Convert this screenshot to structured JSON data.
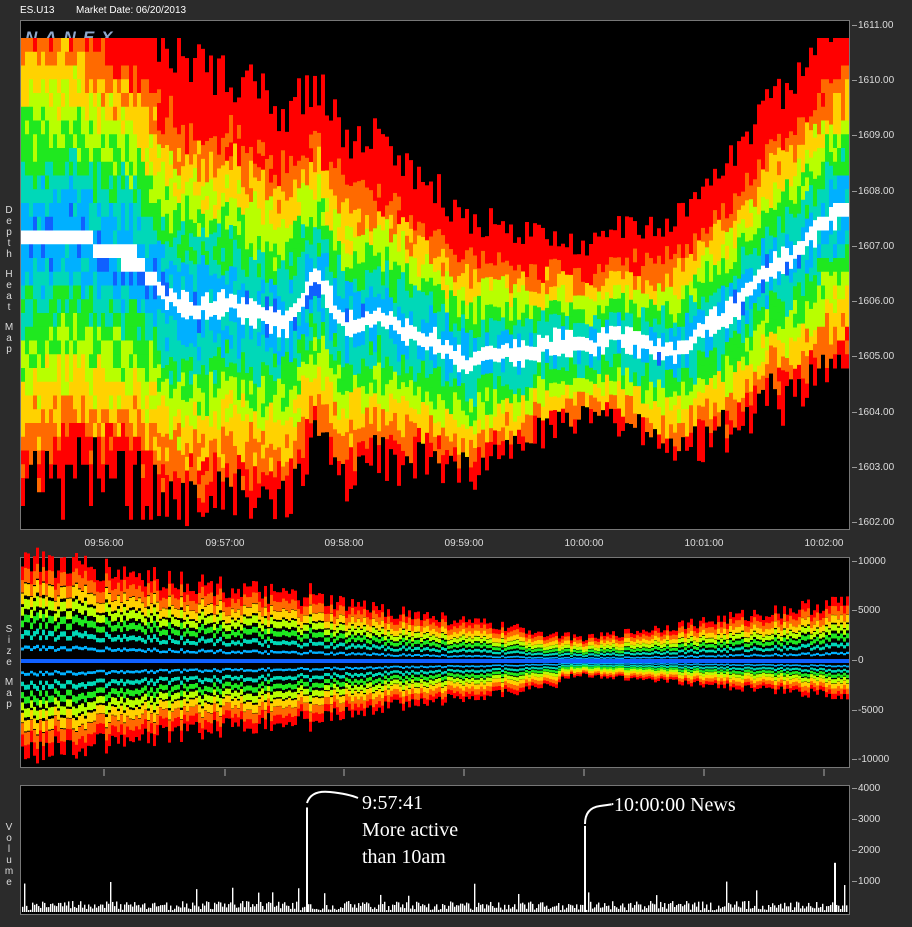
{
  "header": {
    "symbol": "ES.U13",
    "market_date": "Market Date: 06/20/2013"
  },
  "logo": "NANEX",
  "colors": {
    "bg": "#2b2b2b",
    "panel": "#000000",
    "heat": [
      "#ff0000",
      "#ff6a00",
      "#ffd200",
      "#b8ff00",
      "#1fe81f",
      "#00d8b8",
      "#00b0ff",
      "#1060ff",
      "#ffffff"
    ]
  },
  "chart_data": [
    {
      "type": "heatmap",
      "title": "",
      "ylabel": "Depth Heat Map",
      "x_ticks": [
        "09:56:00",
        "09:57:00",
        "09:58:00",
        "09:59:00",
        "10:00:00",
        "10:01:00",
        "10:02:00"
      ],
      "y_ticks": [
        "1611.00",
        "1610.00",
        "1609.00",
        "1608.00",
        "1607.00",
        "1606.00",
        "1605.00",
        "1604.00",
        "1603.00",
        "1602.00"
      ],
      "ylim": [
        1602,
        1611
      ],
      "mid_price_path": [
        {
          "t": "09:55:30",
          "p": 1607.2
        },
        {
          "t": "09:55:45",
          "p": 1607.4
        },
        {
          "t": "09:56:00",
          "p": 1607.0
        },
        {
          "t": "09:56:15",
          "p": 1606.9
        },
        {
          "t": "09:56:30",
          "p": 1606.2
        },
        {
          "t": "09:56:45",
          "p": 1606.0
        },
        {
          "t": "09:57:00",
          "p": 1606.1
        },
        {
          "t": "09:57:15",
          "p": 1605.9
        },
        {
          "t": "09:57:30",
          "p": 1605.7
        },
        {
          "t": "09:57:45",
          "p": 1606.6
        },
        {
          "t": "09:58:00",
          "p": 1605.7
        },
        {
          "t": "09:58:15",
          "p": 1605.9
        },
        {
          "t": "09:58:30",
          "p": 1605.6
        },
        {
          "t": "09:58:45",
          "p": 1605.4
        },
        {
          "t": "09:59:00",
          "p": 1605.0
        },
        {
          "t": "09:59:15",
          "p": 1605.2
        },
        {
          "t": "09:59:30",
          "p": 1605.2
        },
        {
          "t": "09:59:45",
          "p": 1605.4
        },
        {
          "t": "10:00:00",
          "p": 1605.3
        },
        {
          "t": "10:00:15",
          "p": 1605.5
        },
        {
          "t": "10:00:30",
          "p": 1605.3
        },
        {
          "t": "10:00:45",
          "p": 1605.2
        },
        {
          "t": "10:01:00",
          "p": 1605.7
        },
        {
          "t": "10:01:15",
          "p": 1606.0
        },
        {
          "t": "10:01:30",
          "p": 1606.7
        },
        {
          "t": "10:01:45",
          "p": 1607.0
        },
        {
          "t": "10:02:00",
          "p": 1607.6
        },
        {
          "t": "10:02:10",
          "p": 1607.8
        }
      ]
    },
    {
      "type": "heatmap",
      "title": "",
      "ylabel": "Size Map",
      "y_ticks": [
        "10000",
        "5000",
        "0",
        "-5000",
        "-10000"
      ],
      "ylim": [
        -10000,
        10000
      ]
    },
    {
      "type": "bar",
      "title": "",
      "ylabel": "Volume",
      "y_ticks": [
        "4000",
        "3000",
        "2000",
        "1000"
      ],
      "ylim": [
        0,
        4000
      ],
      "spikes": [
        {
          "t": "09:57:41",
          "value": 3400
        },
        {
          "t": "10:00:00",
          "value": 2800
        },
        {
          "t": "10:02:05",
          "value": 1600
        }
      ],
      "annotations": [
        {
          "lines": [
            "9:57:41",
            "More active",
            "than 10am"
          ]
        },
        {
          "lines": [
            "10:00:00 News"
          ]
        }
      ]
    }
  ]
}
